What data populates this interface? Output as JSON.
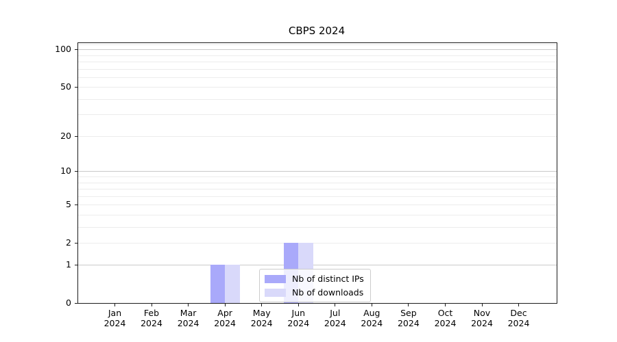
{
  "figure": {
    "title": "CBPS 2024"
  },
  "chart_data": {
    "type": "bar",
    "title": "CBPS 2024",
    "xlabel": "",
    "ylabel": "",
    "categories": [
      {
        "month": "Jan",
        "year": "2024"
      },
      {
        "month": "Feb",
        "year": "2024"
      },
      {
        "month": "Mar",
        "year": "2024"
      },
      {
        "month": "Apr",
        "year": "2024"
      },
      {
        "month": "May",
        "year": "2024"
      },
      {
        "month": "Jun",
        "year": "2024"
      },
      {
        "month": "Jul",
        "year": "2024"
      },
      {
        "month": "Aug",
        "year": "2024"
      },
      {
        "month": "Sep",
        "year": "2024"
      },
      {
        "month": "Oct",
        "year": "2024"
      },
      {
        "month": "Nov",
        "year": "2024"
      },
      {
        "month": "Dec",
        "year": "2024"
      }
    ],
    "series": [
      {
        "name": "Nb of distinct IPs",
        "color": "#a9a9fa",
        "values": [
          0,
          0,
          0,
          1,
          0,
          2,
          0,
          0,
          0,
          0,
          0,
          0
        ]
      },
      {
        "name": "Nb of downloads",
        "color": "#d9d9fa",
        "values": [
          0,
          0,
          0,
          1,
          0,
          2,
          0,
          0,
          0,
          0,
          0,
          0
        ]
      }
    ],
    "y_axis": {
      "scale": "log1p",
      "ticks": [
        0,
        1,
        2,
        5,
        10,
        20,
        50,
        100
      ],
      "max": 112.4,
      "major_gridlines": [
        1,
        10,
        100
      ],
      "minor_gridlines": [
        2,
        3,
        4,
        5,
        6,
        7,
        8,
        9,
        20,
        30,
        40,
        50,
        60,
        70,
        80,
        90,
        110
      ]
    },
    "grid": "horizontal",
    "legend": {
      "position": "lower-center-inside",
      "entries": [
        "Nb of distinct IPs",
        "Nb of downloads"
      ]
    },
    "colors": {
      "major_grid": "#c9c9c9",
      "minor_grid": "#ececec",
      "spine": "#1a1a1a",
      "background": "#ffffff"
    }
  }
}
